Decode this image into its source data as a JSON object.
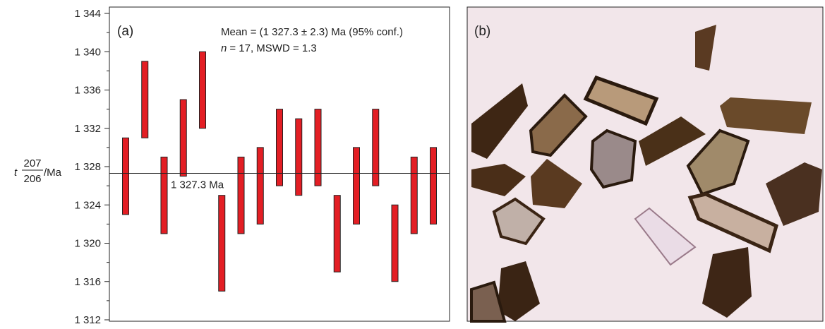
{
  "chart_data": {
    "type": "errorbar",
    "panel_label": "(a)",
    "annotation_mean": "Mean = (1 327.3 ± 2.3) Ma (95% conf.)",
    "annotation_n": "n",
    "annotation_stats": "= 17, MSWD = 1.3",
    "y_label": {
      "prefix": "t",
      "numerator": "207",
      "denominator": "206",
      "suffix": "/Ma"
    },
    "values": [
      1327,
      1335,
      1325,
      1331,
      1336,
      1320,
      1325,
      1326,
      1330,
      1329,
      1330,
      1321,
      1326,
      1330,
      1320,
      1325,
      1326
    ],
    "errors": [
      4,
      4,
      4,
      4,
      4,
      5,
      4,
      4,
      4,
      4,
      4,
      4,
      4,
      4,
      4,
      4,
      4
    ],
    "color": "#e31e24",
    "mean": {
      "value": 1327.3,
      "label": "1 327.3 Ma"
    },
    "ylim": [
      1312,
      1344
    ],
    "yticks": [
      {
        "value": 1312,
        "label": "1 312"
      },
      {
        "value": 1316,
        "label": "1 316"
      },
      {
        "value": 1320,
        "label": "1 320"
      },
      {
        "value": 1324,
        "label": "1 324"
      },
      {
        "value": 1328,
        "label": "1 328"
      },
      {
        "value": 1332,
        "label": "1 332"
      },
      {
        "value": 1336,
        "label": "1 336"
      },
      {
        "value": 1340,
        "label": "1 340"
      },
      {
        "value": 1344,
        "label": "1 344"
      }
    ],
    "yminor": [
      1314,
      1318,
      1322,
      1326,
      1330,
      1334,
      1338,
      1342
    ]
  },
  "photo": {
    "panel_label": "(b)"
  }
}
